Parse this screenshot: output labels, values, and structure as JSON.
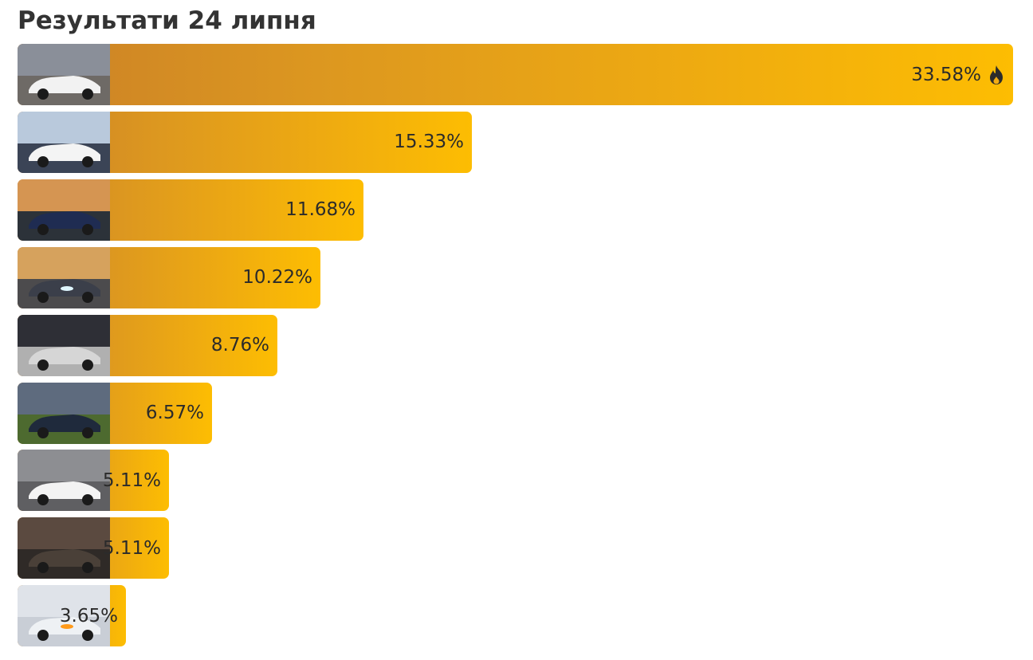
{
  "title": "Результати 24 липня",
  "chart_data": {
    "type": "bar",
    "orientation": "horizontal",
    "title": "Результати 24 липня",
    "unit": "%",
    "xlim": [
      0,
      33.58
    ],
    "grid": false,
    "legend": "none",
    "value_labels": [
      "33.58%",
      "15.33%",
      "11.68%",
      "10.22%",
      "8.76%",
      "6.57%",
      "5.11%",
      "5.11%",
      "3.65%"
    ],
    "values": [
      33.58,
      15.33,
      11.68,
      10.22,
      8.76,
      6.57,
      5.11,
      5.11,
      3.65
    ],
    "thumbnails": [
      "white-sedan-photo",
      "white-coupe-photo",
      "dark-blue-sedan-sunset-photo",
      "car-headlights-street-photo",
      "silver-sedan-garage-photo",
      "dark-sedan-field-photo",
      "white-minivan-photo",
      "brown-sedan-photo",
      "white-car-headlight-closeup-photo"
    ],
    "leader_icon": "fire-icon",
    "colors": {
      "bar_gradient_start": "#cb8127",
      "bar_gradient_end": "#fdbd02",
      "label": "#2b2b2b",
      "title": "#333333"
    }
  }
}
